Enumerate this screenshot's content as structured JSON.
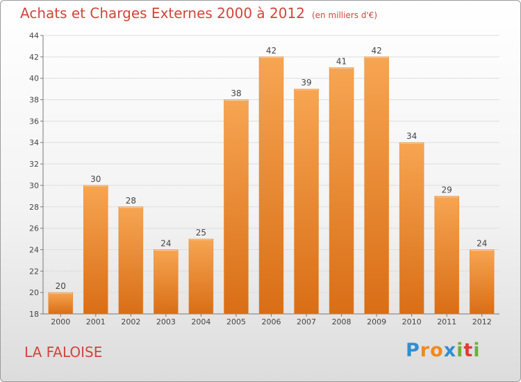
{
  "header": {
    "title": "Achats et Charges Externes 2000 à 2012",
    "unit": "(en milliers d'€)"
  },
  "footer": {
    "town": "LA FALOISE",
    "logo_text": "Proxiti",
    "logo_letters": [
      "P",
      "r",
      "o",
      "x",
      "i",
      "t",
      "i"
    ],
    "logo_colors": [
      "#2f8fd0",
      "#f08a1c",
      "#f08a1c",
      "#2f8fd0",
      "#6bb03a",
      "#e23b37",
      "#6bb03a"
    ]
  },
  "colors": {
    "bar_light": "#f7a552",
    "bar_dark": "#d96e16",
    "axis": "#777777",
    "grid": "#dddddd",
    "accent": "#d2443a"
  },
  "chart_data": {
    "type": "bar",
    "categories": [
      "2000",
      "2001",
      "2002",
      "2003",
      "2004",
      "2005",
      "2006",
      "2007",
      "2008",
      "2009",
      "2010",
      "2011",
      "2012"
    ],
    "values": [
      20,
      30,
      28,
      24,
      25,
      38,
      42,
      39,
      41,
      42,
      34,
      29,
      24
    ],
    "ylim": [
      18,
      44
    ],
    "yticks": [
      18,
      20,
      22,
      24,
      26,
      28,
      30,
      32,
      34,
      36,
      38,
      40,
      42,
      44
    ],
    "grid": true
  }
}
